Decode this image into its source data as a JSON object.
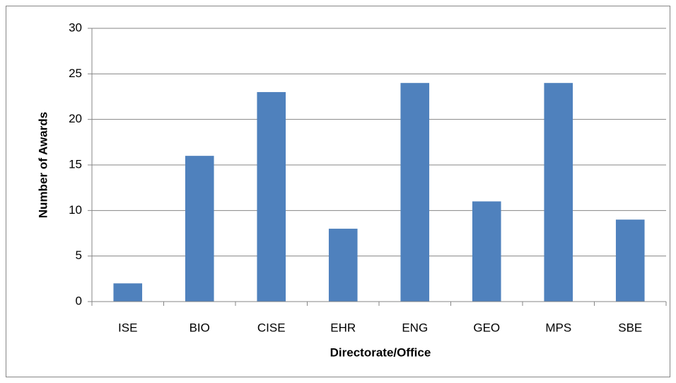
{
  "chart_data": {
    "type": "bar",
    "x_label": "Directorate/Office",
    "y_label": "Number of Awards",
    "categories": [
      "ISE",
      "BIO",
      "CISE",
      "EHR",
      "ENG",
      "GEO",
      "MPS",
      "SBE"
    ],
    "values": [
      2,
      16,
      23,
      8,
      24,
      11,
      24,
      9
    ],
    "color": "#4f81bd",
    "ylim": [
      0,
      30
    ],
    "yticks": [
      0,
      5,
      10,
      15,
      20,
      25,
      30
    ],
    "grid": true
  }
}
